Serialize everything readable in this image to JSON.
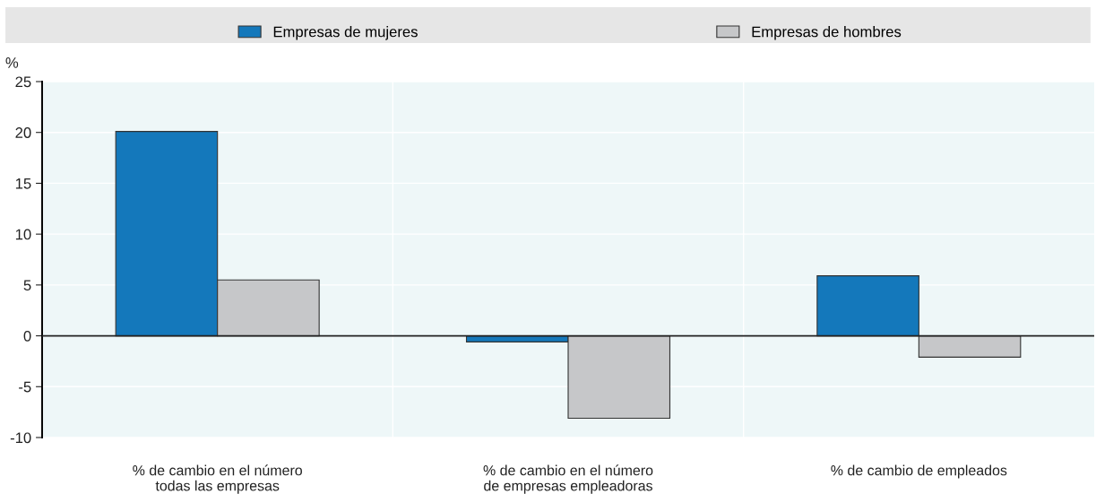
{
  "chart_data": {
    "type": "bar",
    "ylabel": "%",
    "categories": [
      "% de cambio en el número\ntodas las empresas",
      "% de cambio en el número\nde empresas empleadoras",
      "% de cambio de empleados"
    ],
    "series": [
      {
        "name": "Empresas de mujeres",
        "color": "#1478bb",
        "values": [
          20.1,
          -0.6,
          5.9
        ]
      },
      {
        "name": "Empresas de hombres",
        "color": "#c6c7c9",
        "values": [
          5.5,
          -8.1,
          -2.1
        ]
      }
    ],
    "ylim": [
      -10,
      25
    ],
    "yticks": [
      -10,
      -5,
      0,
      5,
      10,
      15,
      20,
      25
    ],
    "grid": "y",
    "legend": "top"
  }
}
